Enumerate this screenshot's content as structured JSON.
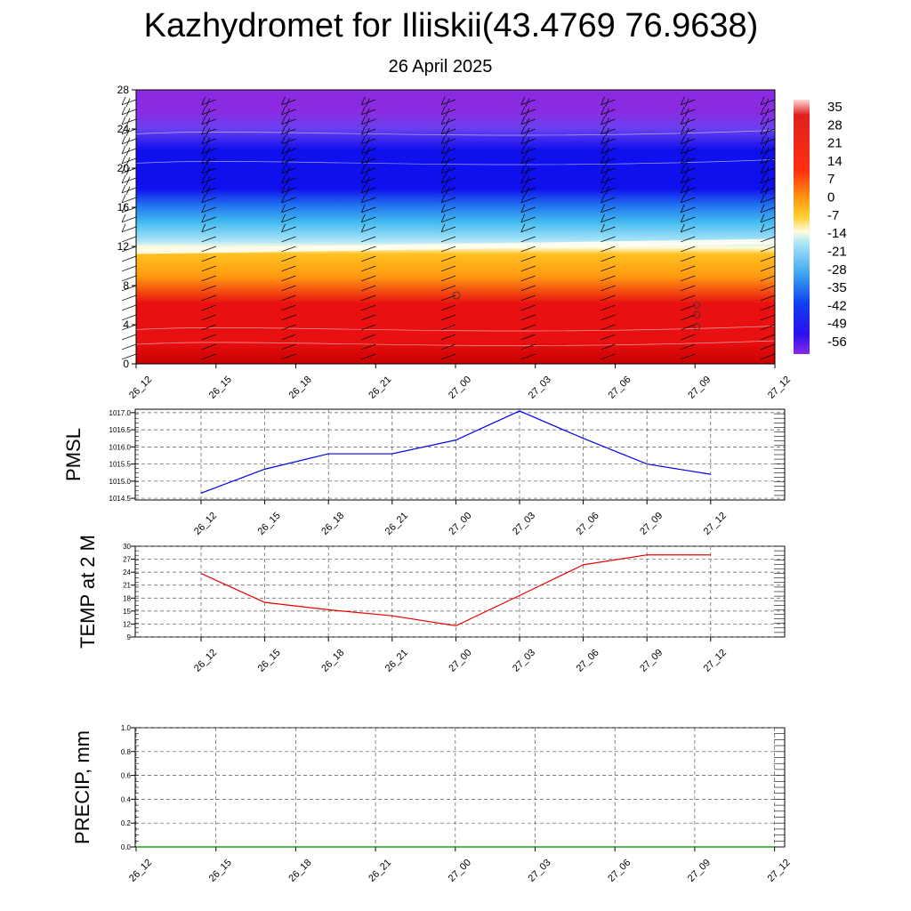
{
  "title": "Kazhydromet for Iliiskii(43.4769 76.9638)",
  "subtitle": "26 April 2025",
  "chart_data": [
    {
      "type": "heatmap",
      "name": "cross-section",
      "x_categories": [
        "26_12",
        "26_15",
        "26_18",
        "26_21",
        "27_00",
        "27_03",
        "27_06",
        "27_09",
        "27_12"
      ],
      "y_ticks": [
        0,
        4,
        8,
        12,
        16,
        20,
        24,
        28
      ],
      "ylim": [
        0,
        28
      ],
      "colorbar_labels": [
        "35",
        "28",
        "21",
        "14",
        "7",
        "0",
        "-7",
        "-14",
        "-21",
        "-28",
        "-35",
        "-42",
        "-49",
        "-56"
      ],
      "zero_line_height": [
        11.5,
        12.0,
        12.5
      ],
      "colors": {
        "top": "#8a2be2",
        "blue": "#1010ee",
        "cyan": "#40b8f0",
        "zero": "#fffce0",
        "yellow": "#ffe040",
        "orange": "#ff9a10",
        "red": "#e81010",
        "darkred": "#c80000"
      }
    },
    {
      "type": "line",
      "name": "PMSL",
      "ylabel": "PMSL",
      "x": [
        "26_12",
        "26_15",
        "26_18",
        "26_21",
        "27_00",
        "27_03",
        "27_06",
        "27_09",
        "27_12"
      ],
      "series": [
        {
          "values": [
            1014.65,
            1015.35,
            1015.8,
            1015.8,
            1016.2,
            1017.05,
            1016.25,
            1015.5,
            1015.2
          ]
        }
      ],
      "ylim": [
        1014.45,
        1017.1
      ],
      "y_ticks": [
        "1014.5",
        "1015.0",
        "1015.5",
        "1016.0",
        "1016.5",
        "1017.0"
      ],
      "color": "#0000ee"
    },
    {
      "type": "line",
      "name": "TEMP",
      "ylabel": "TEMP at 2 M",
      "x": [
        "26_12",
        "26_15",
        "26_18",
        "26_21",
        "27_00",
        "27_03",
        "27_06",
        "27_09",
        "27_12"
      ],
      "series": [
        {
          "values": [
            23.7,
            17.0,
            15.3,
            13.9,
            11.6,
            18.6,
            25.7,
            28.0,
            28.0
          ]
        }
      ],
      "ylim": [
        9,
        30
      ],
      "y_ticks": [
        "9",
        "12",
        "15",
        "18",
        "21",
        "24",
        "27",
        "30"
      ],
      "color": "#ee0000"
    },
    {
      "type": "line",
      "name": "PRECIP",
      "ylabel": "PRECIP, mm",
      "x": [
        "26_12",
        "26_15",
        "26_18",
        "26_21",
        "27_00",
        "27_03",
        "27_06",
        "27_09",
        "27_12"
      ],
      "series": [
        {
          "values": [
            0,
            0,
            0,
            0,
            0,
            0,
            0,
            0,
            0
          ]
        }
      ],
      "ylim": [
        0,
        1
      ],
      "y_ticks": [
        "0.0",
        "0.2",
        "0.4",
        "0.6",
        "0.8",
        "1.0"
      ],
      "color": "#008800"
    }
  ]
}
